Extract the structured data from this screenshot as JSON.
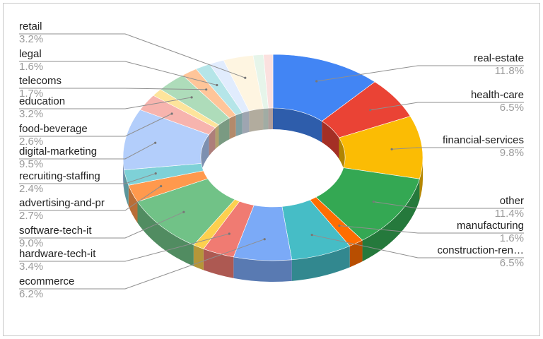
{
  "chart_data": {
    "type": "pie",
    "style": "3d-donut",
    "title": "",
    "legend": "none",
    "slices": [
      {
        "label": "real-estate",
        "value": 11.8,
        "pct_label": "11.8%",
        "color": "#4285f4"
      },
      {
        "label": "health-care",
        "value": 6.5,
        "pct_label": "6.5%",
        "color": "#ea4335"
      },
      {
        "label": "financial-services",
        "value": 9.8,
        "pct_label": "9.8%",
        "color": "#fbbc04"
      },
      {
        "label": "other",
        "value": 11.4,
        "pct_label": "11.4%",
        "color": "#34a853"
      },
      {
        "label": "manufacturing",
        "value": 1.6,
        "pct_label": "1.6%",
        "color": "#ff6d01"
      },
      {
        "label": "construction-ren…",
        "value": 6.5,
        "pct_label": "6.5%",
        "color": "#46bdc6"
      },
      {
        "label": "ecommerce",
        "value": 6.2,
        "pct_label": "6.2%",
        "color": "#7baaf7"
      },
      {
        "label": "hardware-tech-it",
        "value": 3.4,
        "pct_label": "3.4%",
        "color": "#f07b72"
      },
      {
        "label": "",
        "value": 1.2,
        "pct_label": "",
        "color": "#fcd04f"
      },
      {
        "label": "software-tech-it",
        "value": 9.0,
        "pct_label": "9.0%",
        "color": "#71c287"
      },
      {
        "label": "advertising-and-pr",
        "value": 2.7,
        "pct_label": "2.7%",
        "color": "#ff994d"
      },
      {
        "label": "recruiting-staffing",
        "value": 2.4,
        "pct_label": "2.4%",
        "color": "#7ed1d7"
      },
      {
        "label": "digital-marketing",
        "value": 9.5,
        "pct_label": "9.5%",
        "color": "#b3cefb"
      },
      {
        "label": "food-beverage",
        "value": 2.6,
        "pct_label": "2.6%",
        "color": "#f7b4ae"
      },
      {
        "label": "",
        "value": 1.2,
        "pct_label": "",
        "color": "#fde49b"
      },
      {
        "label": "education",
        "value": 3.2,
        "pct_label": "3.2%",
        "color": "#aedcba"
      },
      {
        "label": "telecoms",
        "value": 1.7,
        "pct_label": "1.7%",
        "color": "#ffc599"
      },
      {
        "label": "legal",
        "value": 1.6,
        "pct_label": "1.6%",
        "color": "#b5e5e8"
      },
      {
        "label": "",
        "value": 1.6,
        "pct_label": "",
        "color": "#e1ecfd"
      },
      {
        "label": "retail",
        "value": 3.2,
        "pct_label": "3.2%",
        "color": "#fef5e1"
      },
      {
        "label": "",
        "value": 1.1,
        "pct_label": "",
        "color": "#e6f5ea"
      },
      {
        "label": "",
        "value": 1.0,
        "pct_label": "",
        "color": "#fbe1df"
      }
    ]
  }
}
